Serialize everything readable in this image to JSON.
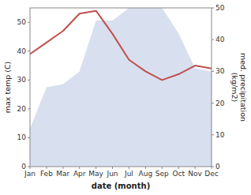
{
  "chart_data": {
    "type": "line",
    "categories": [
      "Jan",
      "Feb",
      "Mar",
      "Apr",
      "May",
      "Jun",
      "Jul",
      "Aug",
      "Sep",
      "Oct",
      "Nov",
      "Dec"
    ],
    "xlabel": "date (month)",
    "ylabel": "max temp (C)",
    "y2label": "med. precipitation\n(kg/m2)",
    "ylim": [
      0,
      55
    ],
    "yticks": [
      0,
      10,
      20,
      30,
      40,
      50
    ],
    "y2lim": [
      0,
      50
    ],
    "y2ticks": [
      0,
      10,
      20,
      30,
      40,
      50
    ],
    "grid": false,
    "series": [
      {
        "type": "area",
        "axis": "y2",
        "color": "#b8c4e0",
        "values": [
          12,
          25,
          26,
          30,
          46,
          46,
          50,
          50,
          50,
          42,
          31,
          30
        ]
      },
      {
        "type": "line",
        "color": "#c0504d",
        "values": [
          39,
          43,
          47,
          53,
          54,
          46,
          37,
          33,
          30,
          32,
          35,
          34
        ]
      }
    ]
  }
}
